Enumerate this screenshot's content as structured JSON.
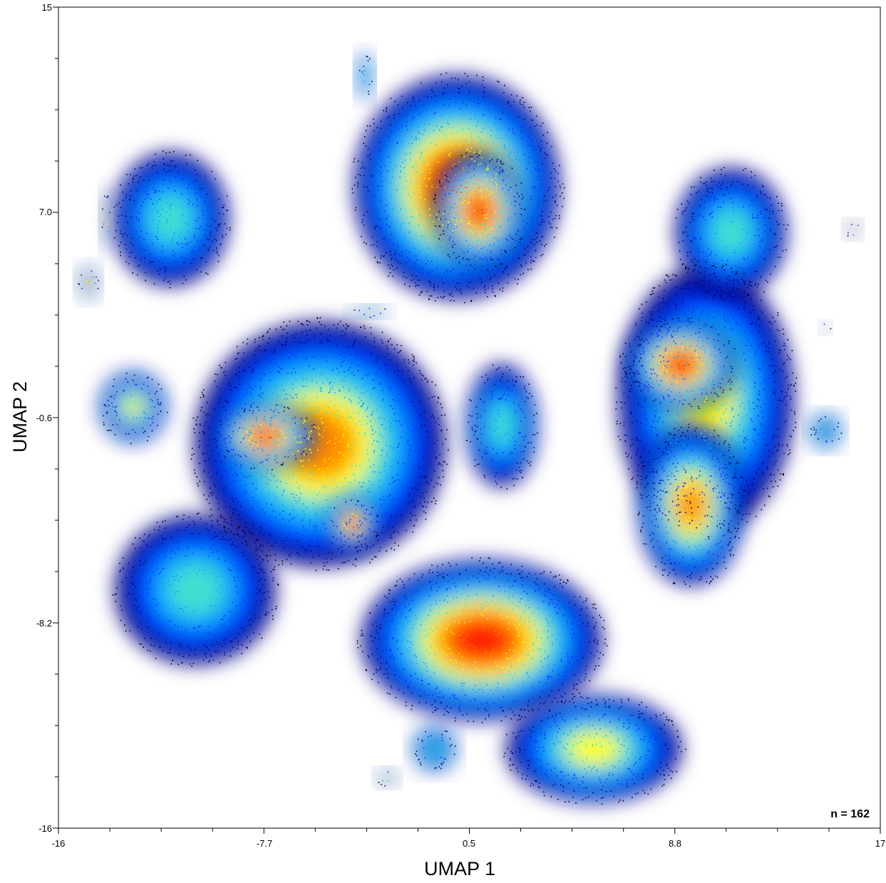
{
  "chart_data": {
    "type": "scatter",
    "title": "",
    "xlabel": "UMAP 1",
    "ylabel": "UMAP 2",
    "xlim": [
      -16,
      17
    ],
    "ylim": [
      -16,
      15
    ],
    "x_ticks": [
      "-16",
      "-7.7",
      "0.5",
      "8.8",
      "17"
    ],
    "y_ticks": [
      "15",
      "7.0",
      "-0.6",
      "-8.2",
      "-16"
    ],
    "annotation": "n = 162",
    "colormap": [
      "#00007f",
      "#0030ff",
      "#00a0ff",
      "#40e0d0",
      "#ffff00",
      "#ff8c00",
      "#ff2000"
    ],
    "clusters": [
      {
        "x": 0.0,
        "y": 8.2,
        "rx": 4.1,
        "ry": 4.2,
        "density": 0.95
      },
      {
        "x": 0.9,
        "y": 7.3,
        "rx": 1.8,
        "ry": 2.2,
        "density": 1.0
      },
      {
        "x": 10.0,
        "y": 0.2,
        "rx": 3.5,
        "ry": 5.0,
        "density": 0.6
      },
      {
        "x": 9.0,
        "y": 1.5,
        "rx": 2.2,
        "ry": 1.7,
        "density": 1.0
      },
      {
        "x": 9.4,
        "y": -3.8,
        "rx": 2.1,
        "ry": 3.0,
        "density": 0.85
      },
      {
        "x": 11.0,
        "y": 6.5,
        "rx": 2.2,
        "ry": 2.4,
        "density": 0.5
      },
      {
        "x": 1.0,
        "y": -8.9,
        "rx": 4.8,
        "ry": 3.0,
        "density": 0.95
      },
      {
        "x": -5.5,
        "y": -1.5,
        "rx": 5.0,
        "ry": 4.6,
        "density": 0.75
      },
      {
        "x": -7.7,
        "y": -1.2,
        "rx": 2.0,
        "ry": 1.2,
        "density": 1.0
      },
      {
        "x": -4.2,
        "y": -4.5,
        "rx": 1.0,
        "ry": 1.0,
        "density": 1.0
      },
      {
        "x": -10.5,
        "y": -7.0,
        "rx": 3.2,
        "ry": 2.8,
        "density": 0.55
      },
      {
        "x": -11.5,
        "y": 7.0,
        "rx": 2.3,
        "ry": 2.5,
        "density": 0.45
      },
      {
        "x": 1.8,
        "y": -0.8,
        "rx": 1.4,
        "ry": 2.3,
        "density": 0.5
      },
      {
        "x": 5.5,
        "y": -13.0,
        "rx": 3.5,
        "ry": 2.0,
        "density": 0.6
      },
      {
        "x": -13.0,
        "y": -0.1,
        "rx": 1.3,
        "ry": 1.3,
        "density": 0.6
      },
      {
        "x": -3.7,
        "y": 12.4,
        "rx": 0.3,
        "ry": 0.8,
        "density": 0.5
      },
      {
        "x": 14.8,
        "y": -1.0,
        "rx": 0.6,
        "ry": 0.6,
        "density": 0.5
      },
      {
        "x": -0.9,
        "y": -13.0,
        "rx": 0.8,
        "ry": 0.8,
        "density": 0.55
      },
      {
        "x": -14.8,
        "y": 4.6,
        "rx": 0.4,
        "ry": 0.6,
        "density": 0.9
      },
      {
        "x": -14.1,
        "y": 7.0,
        "rx": 0.2,
        "ry": 1.0,
        "density": 0.9
      },
      {
        "x": 15.9,
        "y": 6.6,
        "rx": 0.3,
        "ry": 0.3,
        "density": 1.0
      },
      {
        "x": 14.8,
        "y": 2.9,
        "rx": 0.2,
        "ry": 0.2,
        "density": 0.9
      },
      {
        "x": -3.5,
        "y": 3.5,
        "rx": 0.7,
        "ry": 0.2,
        "density": 0.6
      },
      {
        "x": -2.8,
        "y": -14.1,
        "rx": 0.4,
        "ry": 0.3,
        "density": 0.8
      }
    ]
  }
}
